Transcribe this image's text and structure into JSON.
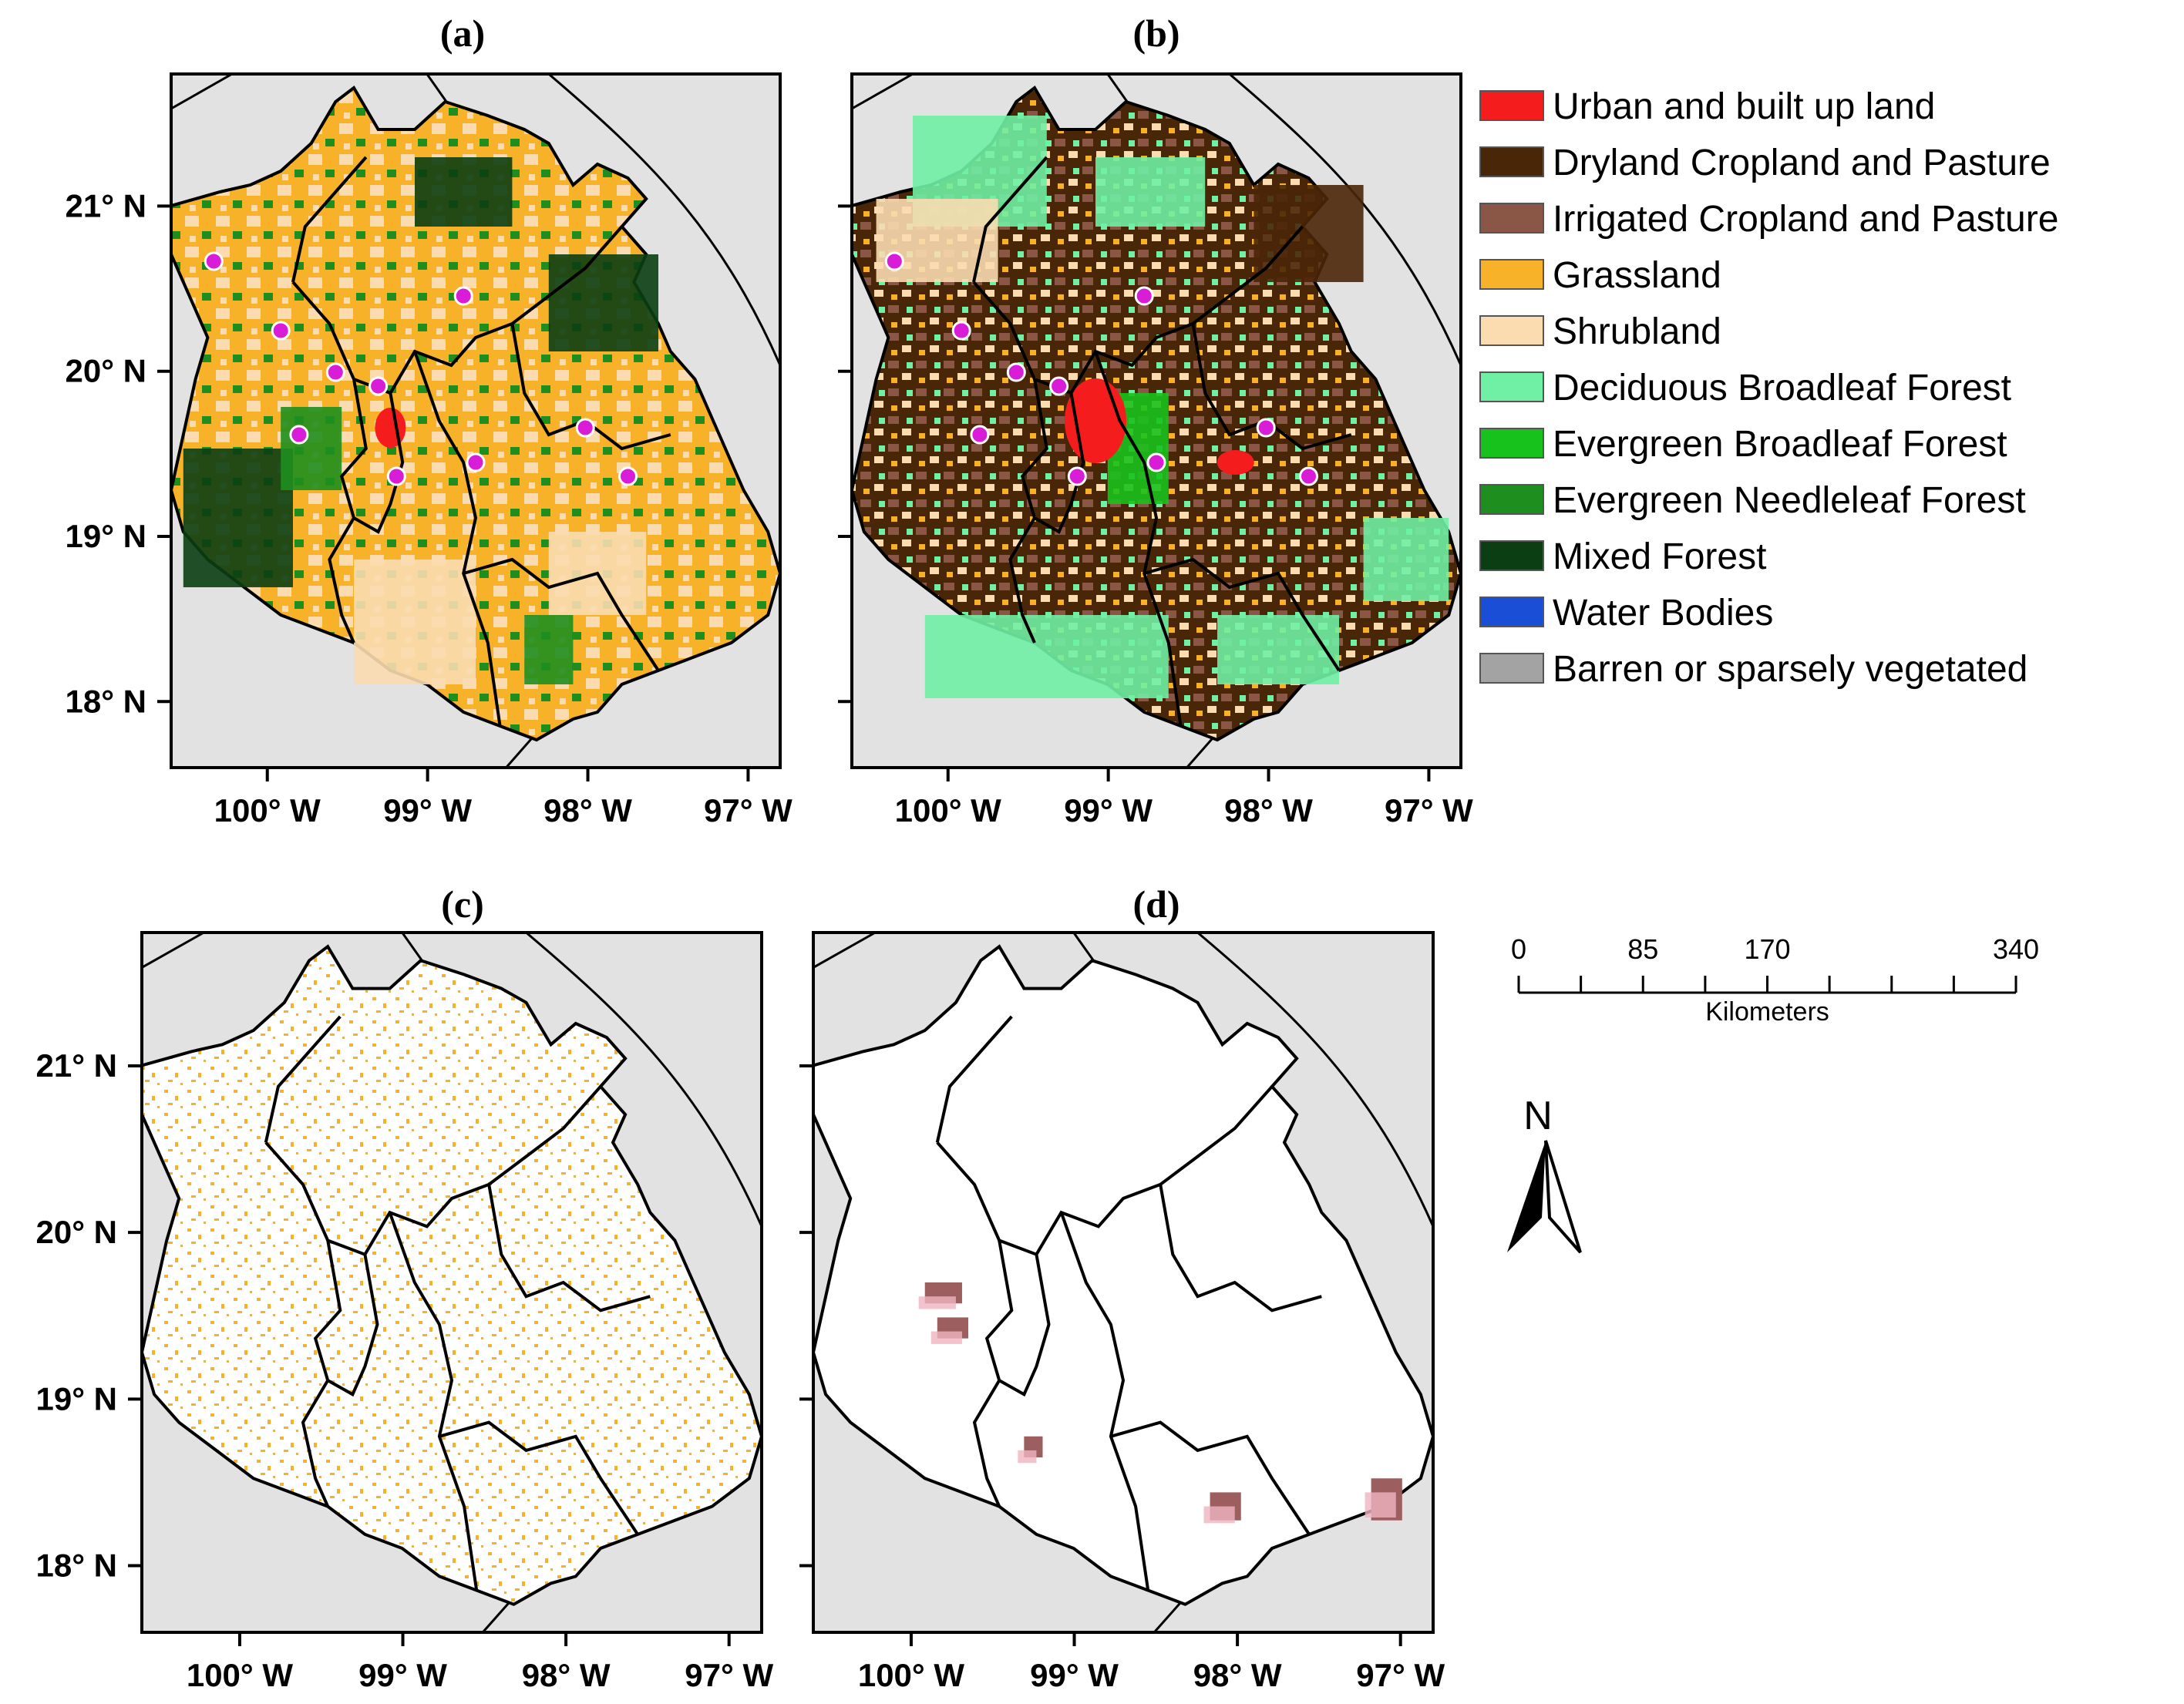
{
  "panels": [
    {
      "label": "(a)",
      "type": "landcover-base"
    },
    {
      "label": "(b)",
      "type": "landcover-updated"
    },
    {
      "label": "(c)",
      "type": "grassland-change"
    },
    {
      "label": "(d)",
      "type": "irrigated-change"
    }
  ],
  "axes": {
    "lat_labels": [
      "21° N",
      "20° N",
      "19° N",
      "18° N"
    ],
    "lat_values": [
      21,
      20,
      19,
      18
    ],
    "lon_labels": [
      "100° W",
      "99° W",
      "98° W",
      "97° W"
    ],
    "lon_values": [
      -100,
      -99,
      -98,
      -97
    ]
  },
  "legend": {
    "items": [
      {
        "label": "Urban and built up land",
        "color": "#f41c1c"
      },
      {
        "label": "Dryland Cropland and Pasture",
        "color": "#4a2608"
      },
      {
        "label": "Irrigated Cropland and Pasture",
        "color": "#8a5646"
      },
      {
        "label": "Grassland",
        "color": "#f7b22a"
      },
      {
        "label": " Shrubland",
        "color": "#fadcb0"
      },
      {
        "label": "Deciduous Broadleaf Forest",
        "color": "#6ff0a4"
      },
      {
        "label": " Evergreen Broadleaf Forest",
        "color": "#18c21c"
      },
      {
        "label": "Evergreen Needleleaf Forest",
        "color": "#1e8e1e"
      },
      {
        "label": "Mixed Forest",
        "color": "#0b3e12"
      },
      {
        "label": "Water Bodies",
        "color": "#1a4ed6"
      },
      {
        "label": "Barren or sparsely vegetated",
        "color": "#a3a3a3"
      }
    ]
  },
  "scalebar": {
    "ticks": [
      "0",
      "85",
      "170",
      "340"
    ],
    "values_km": [
      0,
      85,
      170,
      340
    ],
    "unit": "Kilometers"
  },
  "north_arrow": {
    "label": "N"
  },
  "colors": {
    "background_land": "#e2e2e2",
    "map_border": "#000000",
    "station_marker": "#d81cd8"
  }
}
